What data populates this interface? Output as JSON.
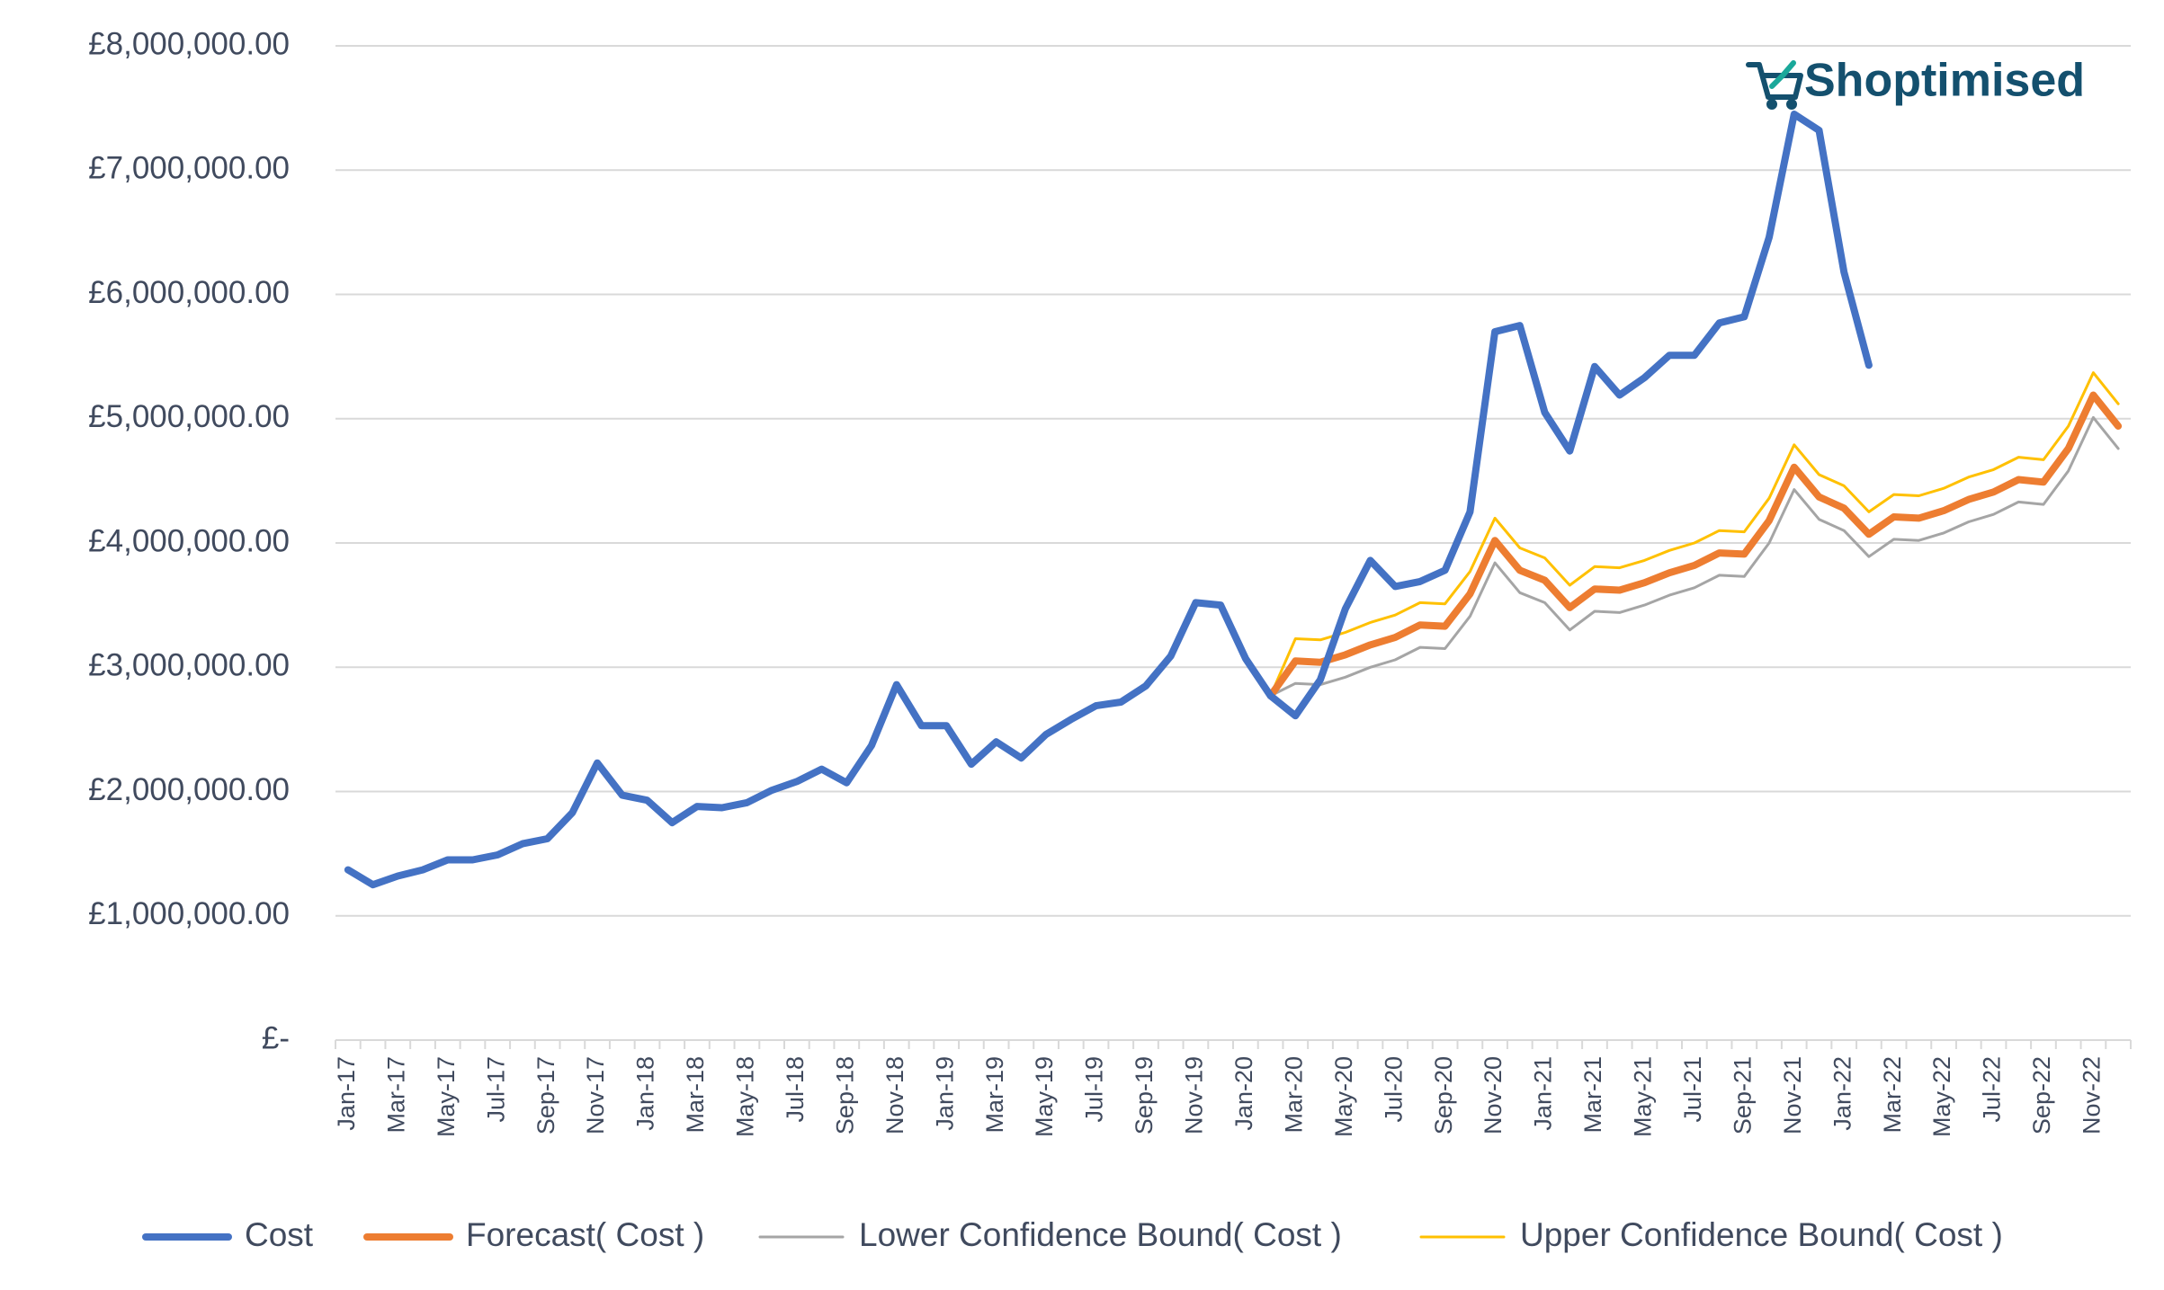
{
  "logo": "Shoptimised",
  "chart_data": {
    "type": "line",
    "categories": [
      "Jan-17",
      null,
      "Mar-17",
      null,
      "May-17",
      null,
      "Jul-17",
      null,
      "Sep-17",
      null,
      "Nov-17",
      null,
      "Jan-18",
      null,
      "Mar-18",
      null,
      "May-18",
      null,
      "Jul-18",
      null,
      "Sep-18",
      null,
      "Nov-18",
      null,
      "Jan-19",
      null,
      "Mar-19",
      null,
      "May-19",
      null,
      "Jul-19",
      null,
      "Sep-19",
      null,
      "Nov-19",
      null,
      "Jan-20",
      null,
      "Mar-20",
      null,
      "May-20",
      null,
      "Jul-20",
      null,
      "Sep-20",
      null,
      "Nov-20",
      null,
      "Jan-21",
      null,
      "Mar-21",
      null,
      "May-21",
      null,
      "Jul-21",
      null,
      "Sep-21",
      null,
      "Nov-21",
      null,
      "Jan-22",
      null,
      "Mar-22",
      null,
      "May-22",
      null,
      "Jul-22",
      null,
      "Sep-22",
      null,
      "Nov-22",
      null
    ],
    "ylim": [
      0,
      8000000
    ],
    "yticks": [
      {
        "value": 0,
        "label": "£-"
      },
      {
        "value": 1000000,
        "label": "£1,000,000.00"
      },
      {
        "value": 2000000,
        "label": "£2,000,000.00"
      },
      {
        "value": 3000000,
        "label": "£3,000,000.00"
      },
      {
        "value": 4000000,
        "label": "£4,000,000.00"
      },
      {
        "value": 5000000,
        "label": "£5,000,000.00"
      },
      {
        "value": 6000000,
        "label": "£6,000,000.00"
      },
      {
        "value": 7000000,
        "label": "£7,000,000.00"
      },
      {
        "value": 8000000,
        "label": "£8,000,000.00"
      }
    ],
    "grid": true,
    "legend": "bottom",
    "series": [
      {
        "name": "Cost",
        "color": "#4472c4",
        "values": [
          1370000,
          1250000,
          1320000,
          1370000,
          1450000,
          1450000,
          1490000,
          1580000,
          1620000,
          1830000,
          2230000,
          1970000,
          1930000,
          1750000,
          1880000,
          1870000,
          1910000,
          2010000,
          2080000,
          2180000,
          2070000,
          2370000,
          2860000,
          2530000,
          2530000,
          2220000,
          2400000,
          2270000,
          2460000,
          2580000,
          2690000,
          2720000,
          2850000,
          3090000,
          3520000,
          3500000,
          3070000,
          2770000,
          2610000,
          2900000,
          3470000,
          3860000,
          3650000,
          3690000,
          3780000,
          4250000,
          5700000,
          5750000,
          5050000,
          4740000,
          5420000,
          5190000,
          5330000,
          5510000,
          5510000,
          5770000,
          5820000,
          6460000,
          7450000,
          7320000,
          6180000,
          5430000,
          null,
          null,
          null,
          null,
          null,
          null,
          null,
          null,
          null,
          null
        ]
      },
      {
        "name": "Forecast( Cost )",
        "color": "#ed7d31",
        "values": [
          null,
          null,
          null,
          null,
          null,
          null,
          null,
          null,
          null,
          null,
          null,
          null,
          null,
          null,
          null,
          null,
          null,
          null,
          null,
          null,
          null,
          null,
          null,
          null,
          null,
          null,
          null,
          null,
          null,
          null,
          null,
          null,
          null,
          null,
          null,
          null,
          null,
          2770000,
          3050000,
          3040000,
          3100000,
          3180000,
          3240000,
          3340000,
          3330000,
          3590000,
          4020000,
          3780000,
          3700000,
          3480000,
          3630000,
          3620000,
          3680000,
          3760000,
          3820000,
          3920000,
          3910000,
          4180000,
          4610000,
          4370000,
          4280000,
          4070000,
          4210000,
          4200000,
          4260000,
          4350000,
          4410000,
          4510000,
          4490000,
          4760000,
          5190000,
          4940000
        ]
      },
      {
        "name": "Lower Confidence Bound( Cost )",
        "color": "#a5a5a5",
        "values": [
          null,
          null,
          null,
          null,
          null,
          null,
          null,
          null,
          null,
          null,
          null,
          null,
          null,
          null,
          null,
          null,
          null,
          null,
          null,
          null,
          null,
          null,
          null,
          null,
          null,
          null,
          null,
          null,
          null,
          null,
          null,
          null,
          null,
          null,
          null,
          null,
          null,
          2770000,
          2870000,
          2860000,
          2920000,
          3000000,
          3060000,
          3160000,
          3150000,
          3410000,
          3840000,
          3600000,
          3520000,
          3300000,
          3450000,
          3440000,
          3500000,
          3580000,
          3640000,
          3740000,
          3730000,
          4000000,
          4430000,
          4190000,
          4100000,
          3890000,
          4030000,
          4020000,
          4080000,
          4170000,
          4230000,
          4330000,
          4310000,
          4580000,
          5010000,
          4760000
        ]
      },
      {
        "name": "Upper Confidence Bound( Cost )",
        "color": "#ffc000",
        "values": [
          null,
          null,
          null,
          null,
          null,
          null,
          null,
          null,
          null,
          null,
          null,
          null,
          null,
          null,
          null,
          null,
          null,
          null,
          null,
          null,
          null,
          null,
          null,
          null,
          null,
          null,
          null,
          null,
          null,
          null,
          null,
          null,
          null,
          null,
          null,
          null,
          null,
          2770000,
          3230000,
          3220000,
          3280000,
          3360000,
          3420000,
          3520000,
          3510000,
          3770000,
          4200000,
          3960000,
          3880000,
          3660000,
          3810000,
          3800000,
          3860000,
          3940000,
          4000000,
          4100000,
          4090000,
          4360000,
          4790000,
          4550000,
          4460000,
          4250000,
          4390000,
          4380000,
          4440000,
          4530000,
          4590000,
          4690000,
          4670000,
          4940000,
          5370000,
          5120000
        ]
      }
    ]
  }
}
